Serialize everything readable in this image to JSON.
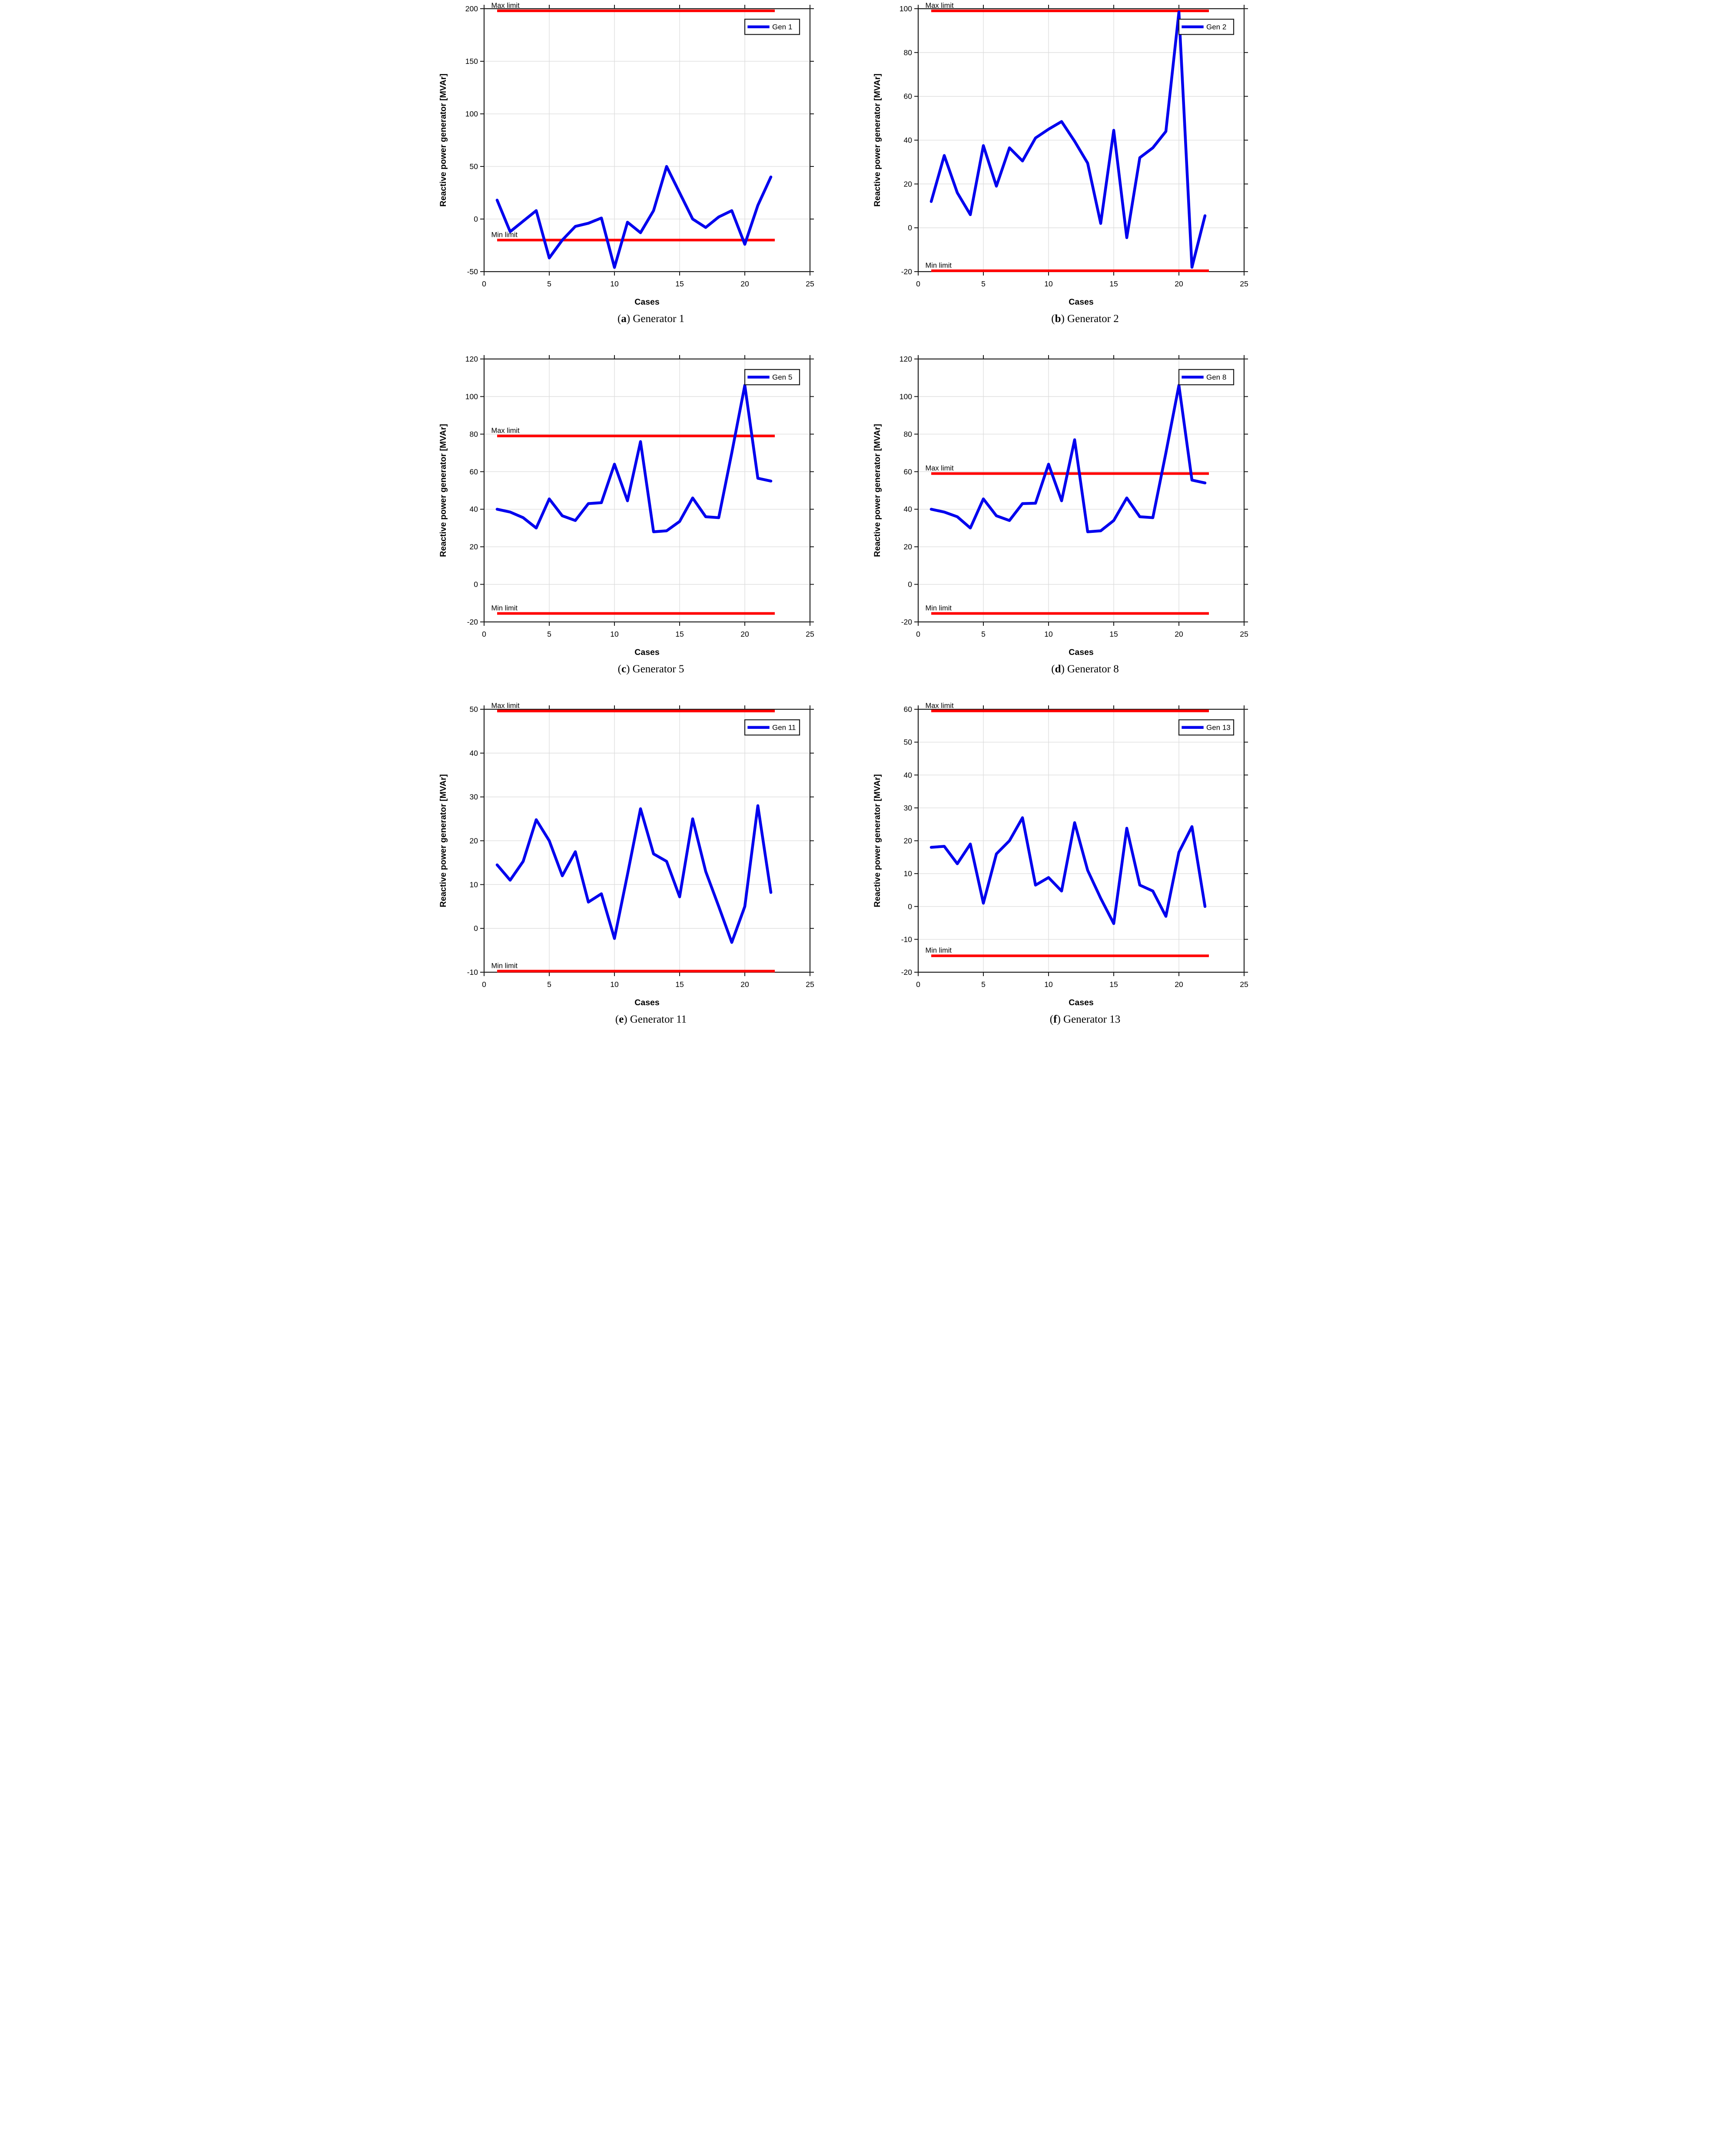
{
  "figure": {
    "type": "multi-panel-line-charts",
    "panels": 6,
    "xlabel": "Cases",
    "ylabel": "Reactive power generator [MVAr]",
    "max_limit_label": "Max limit",
    "min_limit_label": "Min limit"
  },
  "colors": {
    "series": "#0000ee",
    "limit": "#ff0000",
    "grid": "#dcdcdc",
    "axis": "#1c1c1c",
    "text": "#000000",
    "legend_bg": "#ffffff"
  },
  "chart_data": [
    {
      "type": "line",
      "legend": "Gen 1",
      "caption": {
        "letter": "a",
        "title": "Generator 1"
      },
      "xlabel": "Cases",
      "ylabel": "Reactive power generator [MVAr]",
      "xlim": [
        0,
        25
      ],
      "ylim": [
        -50,
        200
      ],
      "xticks": [
        0,
        5,
        10,
        15,
        20,
        25
      ],
      "yticks": [
        -50,
        0,
        50,
        100,
        150,
        200
      ],
      "max_limit": 198,
      "min_limit": -20,
      "max_label": "Max limit",
      "min_label": "Min limit",
      "limit_x": [
        1,
        22.3
      ],
      "x": [
        1,
        2,
        3,
        4,
        5,
        6,
        7,
        8,
        9,
        10,
        11,
        12,
        13,
        14,
        15,
        16,
        17,
        18,
        19,
        20,
        21,
        22
      ],
      "values": [
        18,
        -12,
        -2,
        8,
        -37,
        -20,
        -7,
        -4,
        1,
        -46,
        -3,
        -13,
        8,
        50,
        25,
        0,
        -8,
        2,
        8,
        -24,
        13,
        40
      ]
    },
    {
      "type": "line",
      "legend": "Gen 2",
      "caption": {
        "letter": "b",
        "title": "Generator 2"
      },
      "xlabel": "Cases",
      "ylabel": "Reactive power generator [MVAr]",
      "xlim": [
        0,
        25
      ],
      "ylim": [
        -20,
        100
      ],
      "xticks": [
        0,
        5,
        10,
        15,
        20,
        25
      ],
      "yticks": [
        -20,
        0,
        20,
        40,
        60,
        80,
        100
      ],
      "max_limit": 99,
      "min_limit": -19.6,
      "max_label": "Max limit",
      "min_label": "Min limit",
      "limit_x": [
        1,
        22.3
      ],
      "x": [
        1,
        2,
        3,
        4,
        5,
        6,
        7,
        8,
        9,
        10,
        11,
        12,
        13,
        14,
        15,
        16,
        17,
        18,
        19,
        20,
        21,
        22
      ],
      "values": [
        12,
        33,
        16,
        6,
        37.5,
        19,
        36.5,
        30.5,
        41,
        45,
        48.5,
        39.5,
        29.5,
        2,
        44.5,
        -4.5,
        32,
        36.5,
        44,
        98.5,
        -18,
        5.5
      ]
    },
    {
      "type": "line",
      "legend": "Gen 5",
      "caption": {
        "letter": "c",
        "title": "Generator 5"
      },
      "xlabel": "Cases",
      "ylabel": "Reactive power generator [MVAr]",
      "xlim": [
        0,
        25
      ],
      "ylim": [
        -20,
        120
      ],
      "xticks": [
        0,
        5,
        10,
        15,
        20,
        25
      ],
      "yticks": [
        -20,
        0,
        20,
        40,
        60,
        80,
        100,
        120
      ],
      "max_limit": 79,
      "min_limit": -15.5,
      "max_label": "Max limit",
      "min_label": "Min limit",
      "limit_x": [
        1,
        22.3
      ],
      "x": [
        1,
        2,
        3,
        4,
        5,
        6,
        7,
        8,
        9,
        10,
        11,
        12,
        13,
        14,
        15,
        16,
        17,
        18,
        19,
        20,
        21,
        22
      ],
      "values": [
        40,
        38.5,
        35.5,
        30,
        45.5,
        36.5,
        34,
        43,
        43.5,
        64,
        44.5,
        76,
        28,
        28.5,
        33.5,
        46,
        36,
        35.5,
        70,
        106,
        56.5,
        55
      ]
    },
    {
      "type": "line",
      "legend": "Gen 8",
      "caption": {
        "letter": "d",
        "title": "Generator 8"
      },
      "xlabel": "Cases",
      "ylabel": "Reactive power generator [MVAr]",
      "xlim": [
        0,
        25
      ],
      "ylim": [
        -20,
        120
      ],
      "xticks": [
        0,
        5,
        10,
        15,
        20,
        25
      ],
      "yticks": [
        -20,
        0,
        20,
        40,
        60,
        80,
        100,
        120
      ],
      "max_limit": 59,
      "min_limit": -15.5,
      "max_label": "Max limit",
      "min_label": "Min limit",
      "limit_x": [
        1,
        22.3
      ],
      "x": [
        1,
        2,
        3,
        4,
        5,
        6,
        7,
        8,
        9,
        10,
        11,
        12,
        13,
        14,
        15,
        16,
        17,
        18,
        19,
        20,
        21,
        22
      ],
      "values": [
        40,
        38.5,
        36,
        30,
        45.5,
        36.5,
        34,
        43,
        43.2,
        64,
        44.5,
        77,
        28,
        28.5,
        34,
        46,
        36,
        35.5,
        70,
        106,
        55.5,
        54
      ]
    },
    {
      "type": "line",
      "legend": "Gen 11",
      "caption": {
        "letter": "e",
        "title": "Generator 11"
      },
      "xlabel": "Cases",
      "ylabel": "Reactive power generator [MVAr]",
      "xlim": [
        0,
        25
      ],
      "ylim": [
        -10,
        50
      ],
      "xticks": [
        0,
        5,
        10,
        15,
        20,
        25
      ],
      "yticks": [
        -10,
        0,
        10,
        20,
        30,
        40,
        50
      ],
      "max_limit": 49.6,
      "min_limit": -9.75,
      "max_label": "Max limit",
      "min_label": "Min limit",
      "limit_x": [
        1,
        22.3
      ],
      "x": [
        1,
        2,
        3,
        4,
        5,
        6,
        7,
        8,
        9,
        10,
        11,
        12,
        13,
        14,
        15,
        16,
        17,
        18,
        19,
        20,
        21,
        22
      ],
      "values": [
        14.5,
        11,
        15.3,
        24.8,
        20,
        12,
        17.5,
        6,
        7.9,
        -2.3,
        12.3,
        27.3,
        17,
        15.3,
        7.2,
        25,
        13,
        5,
        -3.2,
        5,
        28,
        8.2
      ]
    },
    {
      "type": "line",
      "legend": "Gen 13",
      "caption": {
        "letter": "f",
        "title": "Generator 13"
      },
      "xlabel": "Cases",
      "ylabel": "Reactive power generator [MVAr]",
      "xlim": [
        0,
        25
      ],
      "ylim": [
        -20,
        60
      ],
      "xticks": [
        0,
        5,
        10,
        15,
        20,
        25
      ],
      "yticks": [
        -20,
        -10,
        0,
        10,
        20,
        30,
        40,
        50,
        60
      ],
      "max_limit": 59.5,
      "min_limit": -15,
      "max_label": "Max limit",
      "min_label": "Min limit",
      "limit_x": [
        1,
        22.3
      ],
      "x": [
        1,
        2,
        3,
        4,
        5,
        6,
        7,
        8,
        9,
        10,
        11,
        12,
        13,
        14,
        15,
        16,
        17,
        18,
        19,
        20,
        21,
        22
      ],
      "values": [
        18,
        18.3,
        13,
        19,
        1,
        16,
        20,
        27,
        6.5,
        8.8,
        4.7,
        25.5,
        11,
        2.5,
        -5.2,
        23.8,
        6.5,
        4.7,
        -3,
        16.5,
        24.3,
        0
      ]
    }
  ]
}
